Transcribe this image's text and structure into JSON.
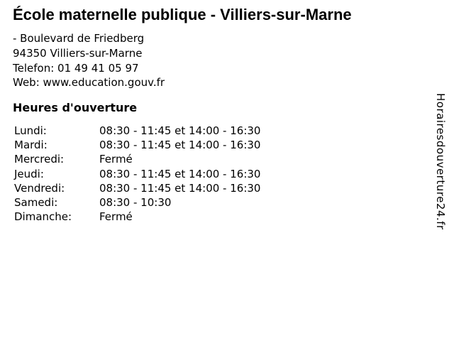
{
  "page": {
    "title": "École maternelle publique - Villiers-sur-Marne"
  },
  "contact": {
    "street": "- Boulevard de Friedberg",
    "city": "94350 Villiers-sur-Marne",
    "phone": "Telefon: 01 49 41 05 97",
    "web": "Web: www.education.gouv.fr"
  },
  "hours": {
    "heading": "Heures d'ouverture",
    "rows": [
      {
        "day": "Lundi:",
        "value": "08:30 - 11:45 et 14:00 - 16:30"
      },
      {
        "day": "Mardi:",
        "value": "08:30 - 11:45 et 14:00 - 16:30"
      },
      {
        "day": "Mercredi:",
        "value": "Fermé"
      },
      {
        "day": "Jeudi:",
        "value": "08:30 - 11:45 et 14:00 - 16:30"
      },
      {
        "day": "Vendredi:",
        "value": "08:30 - 11:45 et 14:00 - 16:30"
      },
      {
        "day": "Samedi:",
        "value": "08:30 - 10:30"
      },
      {
        "day": "Dimanche:",
        "value": "Fermé"
      }
    ]
  },
  "watermark": {
    "label": "Horairesdouverture24.fr"
  },
  "colors": {
    "text": "#000000",
    "background": "#ffffff"
  }
}
